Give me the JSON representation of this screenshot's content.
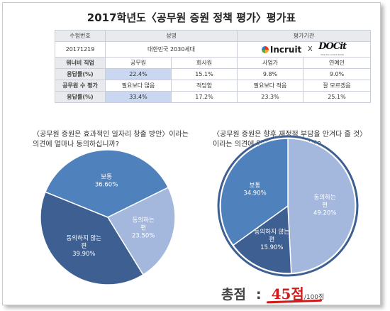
{
  "title": "2017학년도〈공무원 증원 정책 평가〉평가표",
  "table": {
    "header": {
      "id_label": "수험번호",
      "name_label": "성명",
      "org_label": "평가기관"
    },
    "student": {
      "id": "20171219",
      "name": "대한민국 2030세대"
    },
    "logos": {
      "incruit": "Incruit",
      "x": "X",
      "docit": "DOCit",
      "docit_tag": "Total Document Portal"
    },
    "rows": [
      {
        "label": "워너비 직업",
        "cells": [
          "공무원",
          "회사원",
          "사업가",
          "연예인"
        ]
      },
      {
        "label": "응답률(%)",
        "cells": [
          "22.4%",
          "15.1%",
          "9.8%",
          "9.0%"
        ]
      },
      {
        "label": "공무원 수 평가",
        "cells": [
          "필요보다 많음",
          "적당함",
          "필요보다 적음",
          "잘 모르겠음"
        ]
      },
      {
        "label": "응답률(%)",
        "cells": [
          "33.4%",
          "17.2%",
          "23.3%",
          "25.1%"
        ]
      }
    ]
  },
  "question1": {
    "line1": "〈공무원 증원은 효과적인 일자리 창출 방안〉이라는",
    "line2": "의견에 얼마나 동의하십니까?"
  },
  "question2": {
    "line1": "〈공무원 증원은 향후 재정적 부담을 안겨다 줄 것〉",
    "line2": "이라는 의견에 얼마나 동의하십니까?"
  },
  "chart_data": [
    {
      "type": "pie",
      "title": "〈공무원 증원은 효과적인 일자리 창출 방안〉이라는 의견에 얼마나 동의하십니까?",
      "slices": [
        {
          "label": "보통",
          "value": 36.6,
          "text": "36.60%",
          "color": "#4f81bd"
        },
        {
          "label": "동의하는 편",
          "value": 23.5,
          "text": "23.50%",
          "color": "#a4b8de"
        },
        {
          "label": "동의하지 않는 편",
          "value": 39.9,
          "text": "39.90%",
          "color": "#3e5f91"
        }
      ]
    },
    {
      "type": "pie",
      "title": "〈공무원 증원은 향후 재정적 부담을 안겨다 줄 것〉이라는 의견에 얼마나 동의하십니까?",
      "slices": [
        {
          "label": "동의하는 편",
          "value": 49.2,
          "text": "49.20%",
          "color": "#a4b8de"
        },
        {
          "label": "동의하지 않는 편",
          "value": 15.9,
          "text": "15.90%",
          "color": "#3e5f91"
        },
        {
          "label": "보통",
          "value": 34.9,
          "text": "34.90%",
          "color": "#4f81bd"
        }
      ]
    }
  ],
  "total": {
    "label": "총점",
    "colon": ":",
    "score": "45점",
    "outof": "/100점"
  }
}
